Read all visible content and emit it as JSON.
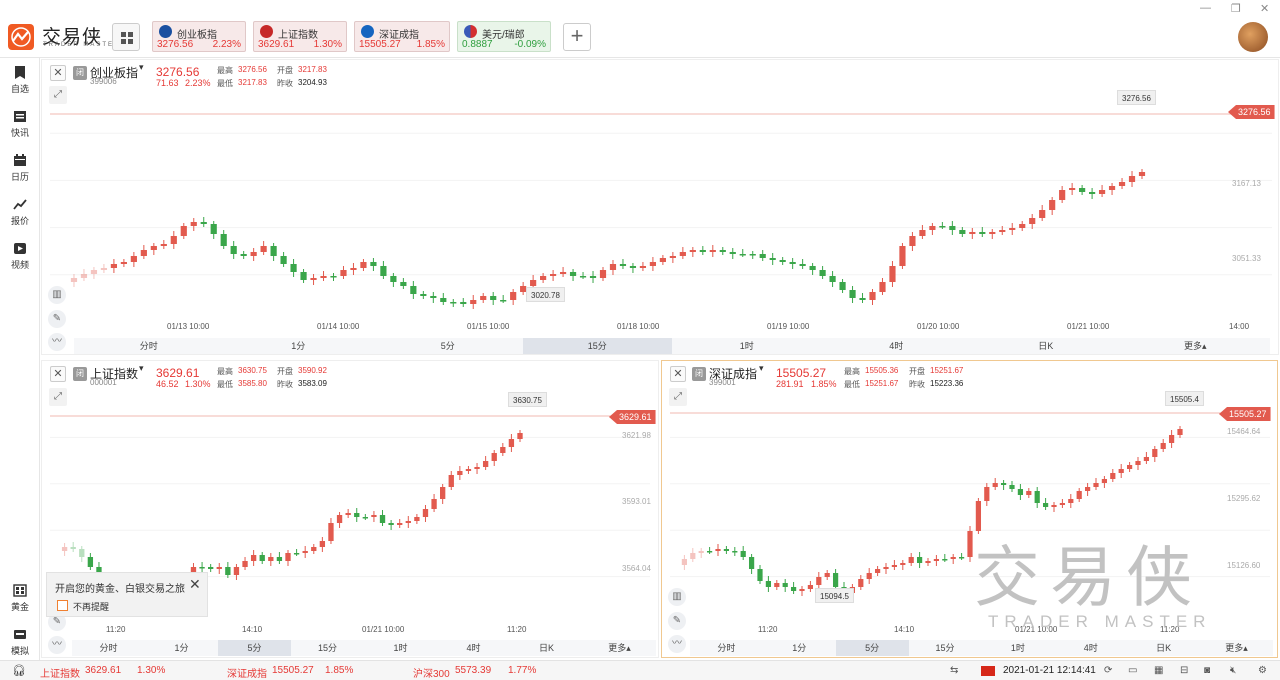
{
  "app": {
    "logo_text": "交易侠",
    "logo_sub": "TRADER MASTER"
  },
  "tiles": [
    {
      "label": "创业板指",
      "value": "3276.56",
      "pct": "2.23%"
    },
    {
      "label": "上证指数",
      "value": "3629.61",
      "pct": "1.30%"
    },
    {
      "label": "深证成指",
      "value": "15505.27",
      "pct": "1.85%"
    },
    {
      "label": "美元/瑞郎",
      "value": "0.8887",
      "pct": "-0.09%"
    }
  ],
  "window_controls": {
    "min": "—",
    "restore": "❐",
    "close": "✕"
  },
  "sidebar": {
    "items": [
      {
        "label": "自选",
        "icon": "bookmark-icon"
      },
      {
        "label": "快讯",
        "icon": "news-icon"
      },
      {
        "label": "日历",
        "icon": "calendar-icon"
      },
      {
        "label": "报价",
        "icon": "quote-icon"
      },
      {
        "label": "视频",
        "icon": "video-icon"
      }
    ],
    "bottom": [
      {
        "label": "黄金",
        "icon": "gold-icon"
      },
      {
        "label": "模拟",
        "icon": "simulate-icon"
      }
    ]
  },
  "panels": {
    "top": {
      "badge": "闭",
      "name": "创业板指",
      "code": "399006",
      "price": "3276.56",
      "change": "71.63",
      "pct": "2.23%",
      "stats": {
        "high_label": "最高",
        "high": "3276.56",
        "open_label": "开盘",
        "open": "3217.83",
        "low_label": "最低",
        "low": "3217.83",
        "prev_label": "昨收",
        "prev": "3204.93"
      },
      "price_tag": "3276.56",
      "high_callout": "3276.56",
      "low_callout": "3020.78",
      "y_ticks": [
        "3167.13",
        "3051.33"
      ],
      "x_ticks": [
        "01/13 10:00",
        "01/14 10:00",
        "01/15 10:00",
        "01/18 10:00",
        "01/19 10:00",
        "01/20 10:00",
        "01/21 10:00",
        "14:00"
      ],
      "tabs": [
        "分时",
        "1分",
        "5分",
        "15分",
        "1时",
        "4时",
        "日K",
        "更多▴"
      ],
      "active_tab": "15分"
    },
    "left": {
      "badge": "闭",
      "name": "上证指数",
      "code": "000001",
      "price": "3629.61",
      "change": "46.52",
      "pct": "1.30%",
      "stats": {
        "high_label": "最高",
        "high": "3630.75",
        "open_label": "开盘",
        "open": "3590.92",
        "low_label": "最低",
        "low": "3585.80",
        "prev_label": "昨收",
        "prev": "3583.09"
      },
      "price_tag": "3629.61",
      "high_callout": "3630.75",
      "y_ticks": [
        "3621.98",
        "3593.01",
        "3564.04"
      ],
      "x_ticks": [
        "11:20",
        "14:10",
        "01/21 10:00",
        "11:20"
      ],
      "tabs": [
        "分时",
        "1分",
        "5分",
        "15分",
        "1时",
        "4时",
        "日K",
        "更多▴"
      ],
      "active_tab": "5分"
    },
    "right": {
      "badge": "闭",
      "name": "深证成指",
      "code": "399001",
      "price": "15505.27",
      "change": "281.91",
      "pct": "1.85%",
      "stats": {
        "high_label": "最高",
        "high": "15505.36",
        "open_label": "开盘",
        "open": "15251.67",
        "low_label": "最低",
        "low": "15251.67",
        "prev_label": "昨收",
        "prev": "15223.36"
      },
      "price_tag": "15505.27",
      "high_callout": "15505.4",
      "low_callout": "15094.5",
      "y_ticks": [
        "15464.64",
        "15295.62",
        "15126.60"
      ],
      "x_ticks": [
        "11:20",
        "14:10",
        "01/21 10:00",
        "11:20"
      ],
      "tabs": [
        "分时",
        "1分",
        "5分",
        "15分",
        "1时",
        "4时",
        "日K",
        "更多▴"
      ],
      "active_tab": "5分"
    }
  },
  "toast": {
    "text": "开启您的黄金、白银交易之旅",
    "checkbox_label": "不再提醒"
  },
  "watermark": {
    "big": "交易侠",
    "small": "TRADER MASTER"
  },
  "status": {
    "items": [
      {
        "name": "上证指数",
        "value": "3629.61",
        "pct": "1.30%"
      },
      {
        "name": "深证成指",
        "value": "15505.27",
        "pct": "1.85%"
      },
      {
        "name": "沪深300",
        "value": "5573.39",
        "pct": "1.77%"
      }
    ],
    "datetime": "2021-01-21 12:14:41"
  },
  "colors": {
    "up": "#e53935",
    "down": "#2e9e3e",
    "accent": "#f05a23"
  }
}
